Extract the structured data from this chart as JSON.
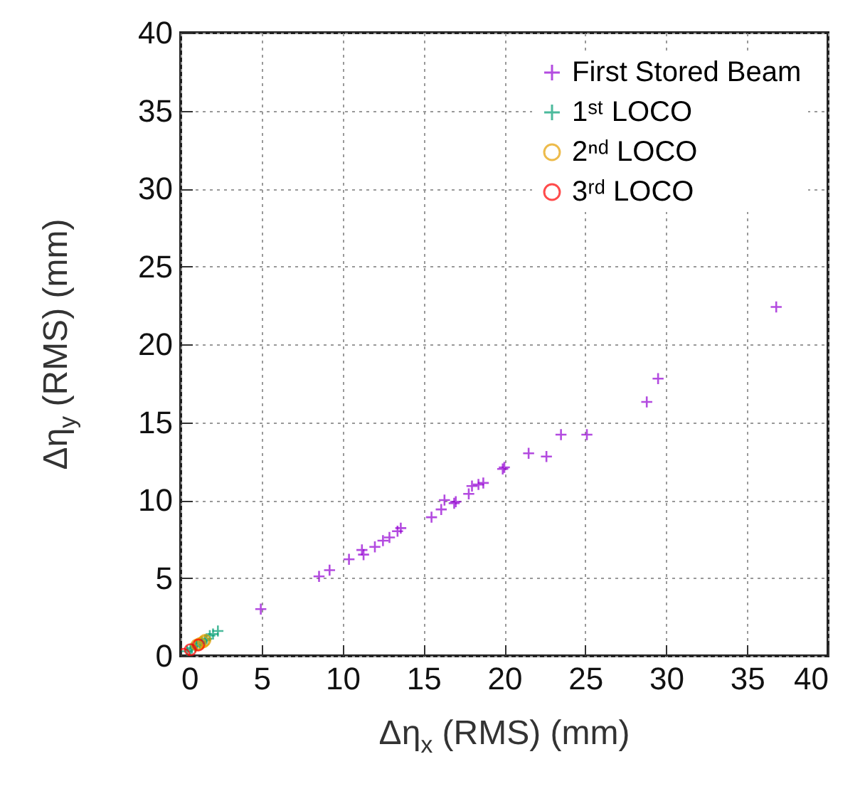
{
  "chart_data": {
    "type": "scatter",
    "xlabel": "Δη$_{x}$ (RMS) (mm)",
    "ylabel": "Δη$_{y}$ (RMS) (mm)",
    "xlim": [
      0,
      40
    ],
    "xticks": [
      0,
      5,
      10,
      15,
      20,
      25,
      30,
      35,
      40
    ],
    "ylim": [
      0,
      40
    ],
    "yticks": [
      0,
      5,
      10,
      15,
      20,
      25,
      30,
      35,
      40
    ],
    "grid": true,
    "legend": "top right",
    "series": [
      {
        "name": "First Stored Beam",
        "color": "#9400d3",
        "marker": "cross",
        "x": [
          4.95,
          8.55,
          9.2,
          10.4,
          11.2,
          11.3,
          12.0,
          12.5,
          12.9,
          13.4,
          13.6,
          15.5,
          16.1,
          16.3,
          16.9,
          17.0,
          17.8,
          18.0,
          18.4,
          18.7,
          19.9,
          20.0,
          21.5,
          22.6,
          23.5,
          25.1,
          28.8,
          29.5,
          36.8
        ],
        "values": [
          3.0,
          5.1,
          5.5,
          6.2,
          6.8,
          6.5,
          7.0,
          7.4,
          7.6,
          8.0,
          8.2,
          8.9,
          9.4,
          10.0,
          9.8,
          9.9,
          10.4,
          10.9,
          11.0,
          11.1,
          12.0,
          12.1,
          13.0,
          12.8,
          14.2,
          14.2,
          16.3,
          17.8,
          22.4
        ]
      },
      {
        "name": "1ˢᵗ LOCO",
        "color": "#009e73",
        "marker": "cross",
        "x": [
          0.4,
          0.6,
          0.7,
          0.9,
          1.0,
          1.2,
          1.3,
          1.5,
          1.6,
          1.8,
          2.0,
          2.3
        ],
        "values": [
          0.3,
          0.4,
          0.5,
          0.6,
          0.7,
          0.8,
          0.9,
          1.0,
          1.1,
          1.3,
          1.4,
          1.6
        ]
      },
      {
        "name": "2ⁿᵈ LOCO",
        "color": "#e69f00",
        "marker": "circle",
        "x": [
          1.0,
          1.2,
          1.4,
          1.5
        ],
        "values": [
          0.7,
          0.8,
          0.9,
          1.0
        ]
      },
      {
        "name": "3ʳᵈ LOCO",
        "color": "#ff0000",
        "marker": "circle",
        "x": [
          0.2,
          0.6,
          1.1
        ],
        "values": [
          0.1,
          0.4,
          0.7
        ]
      }
    ]
  }
}
